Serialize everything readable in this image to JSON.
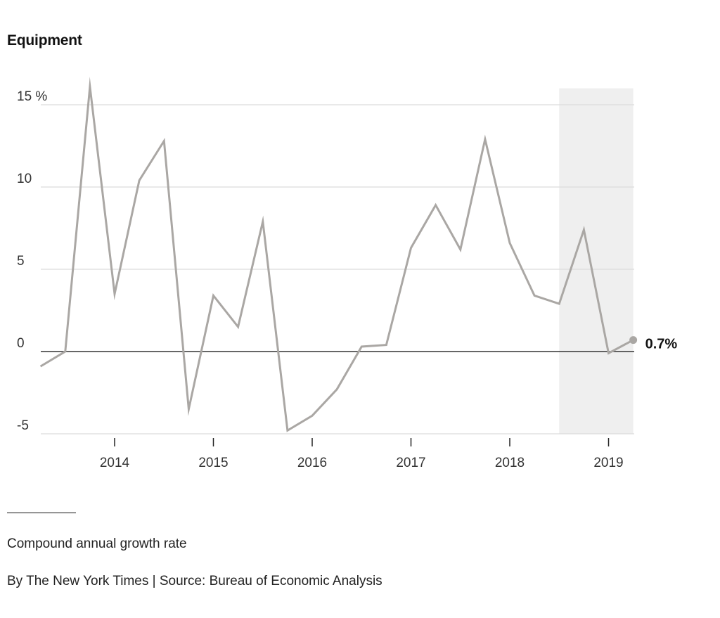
{
  "title": "Equipment",
  "note": "Compound annual growth rate",
  "credit": "By The New York Times | Source: Bureau of Economic Analysis",
  "chart_data": {
    "type": "line",
    "title": "Equipment",
    "xlabel": "",
    "ylabel": "",
    "ylim": [
      -5,
      16
    ],
    "grid": true,
    "y_ticks": [
      {
        "value": 15,
        "label": "15 %"
      },
      {
        "value": 10,
        "label": "10"
      },
      {
        "value": 5,
        "label": "5"
      },
      {
        "value": 0,
        "label": "0"
      },
      {
        "value": -5,
        "label": "-5"
      }
    ],
    "x_ticks": [
      {
        "value": 2014,
        "label": "2014"
      },
      {
        "value": 2015,
        "label": "2015"
      },
      {
        "value": 2016,
        "label": "2016"
      },
      {
        "value": 2017,
        "label": "2017"
      },
      {
        "value": 2018,
        "label": "2018"
      },
      {
        "value": 2019,
        "label": "2019"
      }
    ],
    "shaded_range": [
      2018.5,
      2019.25
    ],
    "series": [
      {
        "color": "#aaa7a4",
        "points": [
          {
            "x": 2013.25,
            "y": -0.9
          },
          {
            "x": 2013.5,
            "y": 0.0
          },
          {
            "x": 2013.75,
            "y": 16.1
          },
          {
            "x": 2014.0,
            "y": 3.5
          },
          {
            "x": 2014.25,
            "y": 10.4
          },
          {
            "x": 2014.5,
            "y": 12.8
          },
          {
            "x": 2014.75,
            "y": -3.5
          },
          {
            "x": 2015.0,
            "y": 3.4
          },
          {
            "x": 2015.25,
            "y": 1.5
          },
          {
            "x": 2015.5,
            "y": 7.9
          },
          {
            "x": 2015.75,
            "y": -4.8
          },
          {
            "x": 2016.0,
            "y": -3.9
          },
          {
            "x": 2016.25,
            "y": -2.3
          },
          {
            "x": 2016.5,
            "y": 0.3
          },
          {
            "x": 2016.75,
            "y": 0.4
          },
          {
            "x": 2017.0,
            "y": 6.3
          },
          {
            "x": 2017.25,
            "y": 8.9
          },
          {
            "x": 2017.5,
            "y": 6.2
          },
          {
            "x": 2017.75,
            "y": 12.9
          },
          {
            "x": 2018.0,
            "y": 6.6
          },
          {
            "x": 2018.25,
            "y": 3.4
          },
          {
            "x": 2018.5,
            "y": 2.9
          },
          {
            "x": 2018.75,
            "y": 7.4
          },
          {
            "x": 2019.0,
            "y": -0.1
          },
          {
            "x": 2019.25,
            "y": 0.7
          }
        ]
      }
    ],
    "annotations": [
      {
        "x": 2019.25,
        "y": 0.7,
        "text": "0.7%"
      }
    ],
    "colors": {
      "line": "#aaa7a4",
      "grid": "#dcdcdc",
      "zero_line": "#333333",
      "shade": "#efefef",
      "text": "#121212"
    }
  }
}
